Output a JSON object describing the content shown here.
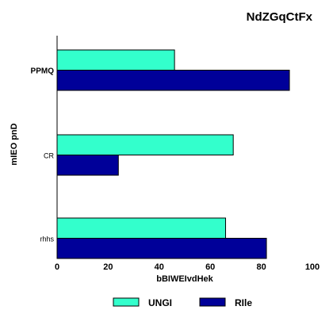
{
  "chart_data": {
    "type": "bar",
    "orientation": "horizontal",
    "title": "NdZGqCtFx",
    "xlabel": "bBIWEIvdHek",
    "ylabel": "mIEO pnD",
    "xlim": [
      0,
      100
    ],
    "x_ticks": [
      0,
      20,
      40,
      60,
      80,
      100
    ],
    "categories": [
      "PPMQ",
      "CR",
      "rhhs"
    ],
    "series": [
      {
        "name": "UNGI",
        "color": "#33ffcc",
        "values": [
          46,
          69,
          66
        ]
      },
      {
        "name": "RIle",
        "color": "#000099",
        "values": [
          91,
          24,
          82
        ]
      }
    ],
    "legend": "bottom",
    "grid": false
  }
}
